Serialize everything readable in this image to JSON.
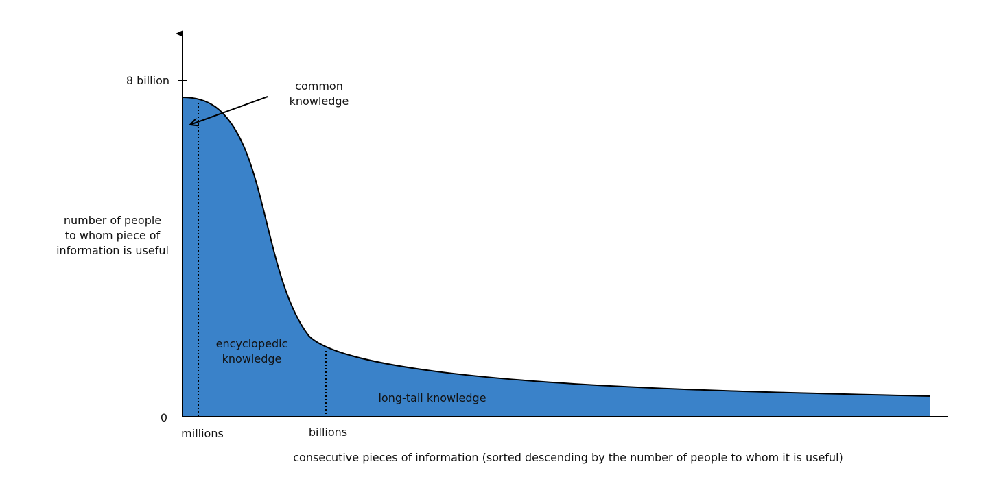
{
  "chart_data": {
    "type": "area",
    "title": "",
    "xlabel": "consecutive pieces of information (sorted descending by the number of people to whom it is useful)",
    "ylabel": [
      "number of people",
      "to whom piece of",
      "information is useful"
    ],
    "y_ticks": [
      {
        "value": 8,
        "label": "8 billion"
      },
      {
        "value": 0,
        "label": "0"
      }
    ],
    "x_ticks": [
      {
        "position": "near-origin",
        "label": "millions"
      },
      {
        "position": "mid-left",
        "label": "billions"
      }
    ],
    "ylim": [
      0,
      8
    ],
    "y_unit": "billion people",
    "grid": false,
    "legend": "none",
    "fill_color": "#3a82c9",
    "curve_color": "#000000",
    "regions": [
      {
        "name": "common",
        "label": [
          "common",
          "knowledge"
        ]
      },
      {
        "name": "encyclopedic",
        "label": [
          "encyclopedic",
          "knowledge"
        ]
      },
      {
        "name": "long-tail",
        "label": [
          "long-tail knowledge"
        ]
      }
    ]
  }
}
